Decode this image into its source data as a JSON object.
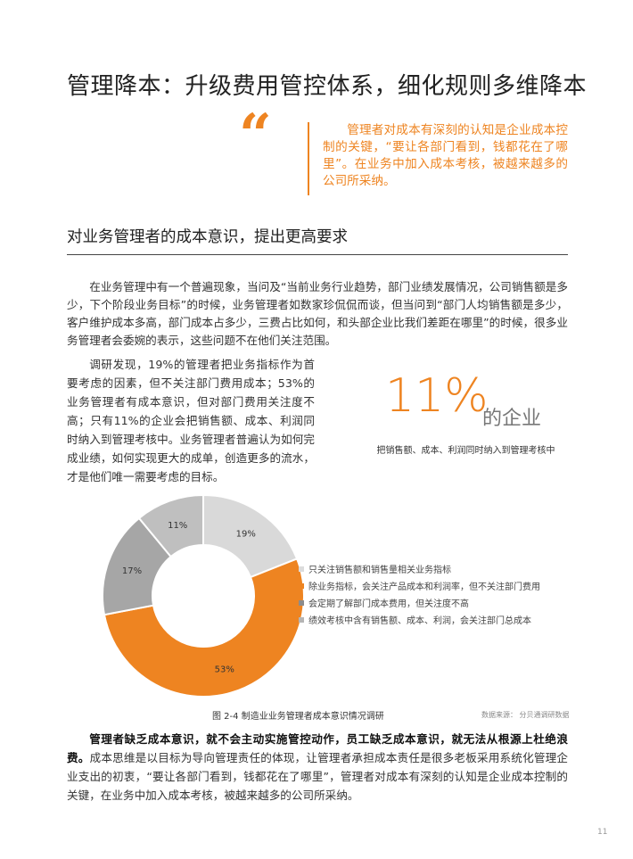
{
  "title": "管理降本：升级费用管控体系，细化规则多维降本",
  "quote": {
    "mark": "“",
    "text": "管理者对成本有深刻的认知是企业成本控制的关键，“要让各部门看到，钱都花在了哪里”。在业务中加入成本考核，被越来越多的公司所采纳。"
  },
  "section_heading": "对业务管理者的成本意识，提出更高要求",
  "paragraph1": "在业务管理中有一个普遍现象，当问及“当前业务行业趋势，部门业绩发展情况，公司销售额是多少，下个阶段业务目标”的时候，业务管理者如数家珍侃侃而谈，但当问到“部门人均销售额是多少，客户维护成本多高，部门成本占多少，三费占比如何，和头部企业比我们差距在哪里”的时候，很多业务管理者会委婉的表示，这些问题不在他们关注范围。",
  "paragraph2": "调研发现，19%的管理者把业务指标作为首要考虑的因素，但不关注部门费用成本；53%的业务管理者有成本意识，但对部门费用关注度不高；只有11%的企业会把销售额、成本、利润同时纳入到管理考核中。业务管理者普遍认为如何完成业绩，如何实现更大的成单，创造更多的流水，才是他们唯一需要考虑的目标。",
  "highlight": {
    "value": "11%",
    "suffix": "的企业",
    "caption": "把销售额、成本、利润同时纳入到管理考核中"
  },
  "chart_data": {
    "type": "pie",
    "donut": true,
    "categories": [
      "只关注销售额和销售量相关业务指标",
      "除业务指标，会关注产品成本和利润率，但不关注部门费用",
      "会定期了解部门成本费用，但关注度不高",
      "绩效考核中含有销售额、成本、利润，会关注部门总成本"
    ],
    "values": [
      19,
      53,
      17,
      11
    ],
    "labels": [
      "19%",
      "53%",
      "17%",
      "11%"
    ],
    "colors": [
      "#d9d9d9",
      "#ee8421",
      "#a6a6a6",
      "#bfbfbf"
    ],
    "legend_position": "right",
    "title": "图 2-4 制造业业务管理者成本意识情况调研",
    "source": "数据来源： 分贝通调研数据"
  },
  "paragraph3": {
    "bold": "管理者缺乏成本意识，就不会主动实施管控动作，员工缺乏成本意识，就无法从根源上杜绝浪费。",
    "text": "成本思维是以目标为导向管理责任的体现，让管理者承担成本责任是很多老板采用系统化管理企业支出的初衷，“要让各部门看到，钱都花在了哪里”，管理者对成本有深刻的认知是企业成本控制的关键，在业务中加入成本考核，被越来越多的公司所采纳。"
  },
  "page_number": "11"
}
